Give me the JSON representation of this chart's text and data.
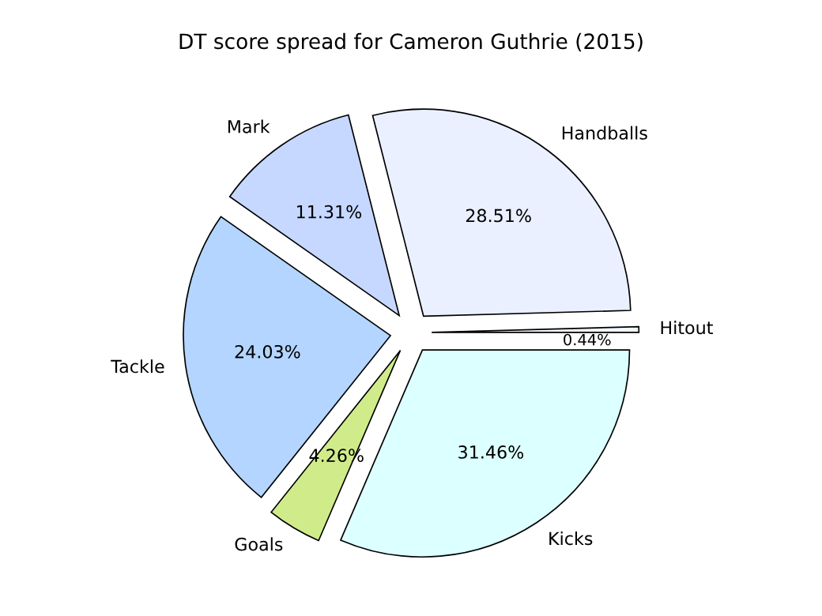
{
  "chart_data": {
    "type": "pie",
    "title": "DT score spread for Cameron Guthrie (2015)",
    "categories": [
      "Hitout",
      "Handballs",
      "Mark",
      "Tackle",
      "Goals",
      "Kicks"
    ],
    "values": [
      0.44,
      28.51,
      11.31,
      24.03,
      4.26,
      31.46
    ],
    "value_labels": [
      "0.44%",
      "28.51%",
      "11.31%",
      "24.03%",
      "4.26%",
      "31.46%"
    ],
    "colors": [
      "#f0f8ff",
      "#eaf0ff",
      "#c6d8ff",
      "#b3d5ff",
      "#d0ec8a",
      "#dcffff"
    ]
  }
}
